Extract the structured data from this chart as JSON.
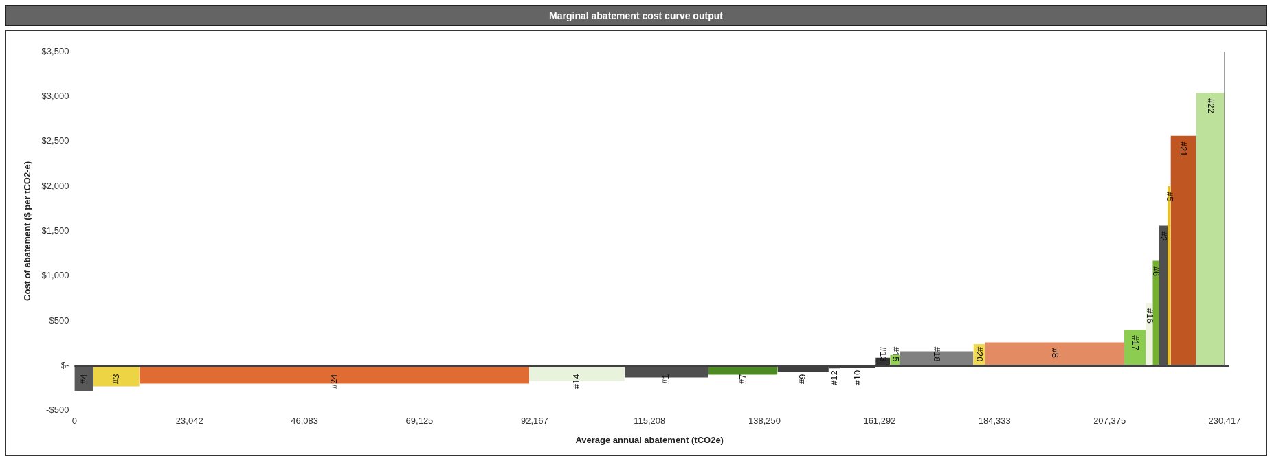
{
  "chart_data": {
    "type": "area",
    "title": "Marginal abatement cost curve output",
    "xlabel": "Average annual abatement (tCO2e)",
    "ylabel": "Cost of abatement ($ per tCO2-e)",
    "xlim": [
      0,
      230417
    ],
    "xticks": [
      {
        "value": 0,
        "label": "0"
      },
      {
        "value": 23042,
        "label": "23,042"
      },
      {
        "value": 46083,
        "label": "46,083"
      },
      {
        "value": 69125,
        "label": "69,125"
      },
      {
        "value": 92167,
        "label": "92,167"
      },
      {
        "value": 115208,
        "label": "115,208"
      },
      {
        "value": 138250,
        "label": "138,250"
      },
      {
        "value": 161292,
        "label": "161,292"
      },
      {
        "value": 184333,
        "label": "184,333"
      },
      {
        "value": 207375,
        "label": "207,375"
      },
      {
        "value": 230417,
        "label": "230,417"
      }
    ],
    "ylim": [
      -500,
      3500
    ],
    "yticks": [
      {
        "value": -500,
        "label": "-$500"
      },
      {
        "value": 0,
        "label": "$-"
      },
      {
        "value": 500,
        "label": "$500"
      },
      {
        "value": 1000,
        "label": "$1,000"
      },
      {
        "value": 1500,
        "label": "$1,500"
      },
      {
        "value": 2000,
        "label": "$2,000"
      },
      {
        "value": 2500,
        "label": "$2,500"
      },
      {
        "value": 3000,
        "label": "$3,000"
      },
      {
        "value": 3500,
        "label": "$3,500"
      }
    ],
    "grid": false,
    "legend": false,
    "ref_lines": [
      {
        "axis": "y",
        "value": 0,
        "color": "#404040"
      },
      {
        "axis": "x",
        "value": 230417,
        "color": "#808080"
      }
    ],
    "series": [
      {
        "name": "#4",
        "color": "#595959",
        "x": [
          0,
          3800
        ],
        "values": [
          -280,
          -280
        ]
      },
      {
        "name": "#3",
        "color": "#ecd445",
        "x": [
          3800,
          13000
        ],
        "values": [
          -230,
          -230
        ]
      },
      {
        "name": "#24",
        "color": "#e06c34",
        "x": [
          13000,
          91100
        ],
        "values": [
          -200,
          -200
        ]
      },
      {
        "name": "#14",
        "color": "#e8f2dc",
        "x": [
          91100,
          110200
        ],
        "values": [
          -170,
          -170
        ]
      },
      {
        "name": "#1",
        "color": "#4f4f4f",
        "x": [
          110200,
          127000
        ],
        "values": [
          -130,
          -130
        ]
      },
      {
        "name": "#7",
        "color": "#4e8a22",
        "x": [
          127000,
          140850
        ],
        "values": [
          -100,
          -100
        ]
      },
      {
        "name": "#9",
        "color": "#3f3f3f",
        "x": [
          140850,
          151100
        ],
        "values": [
          -70,
          -70
        ]
      },
      {
        "name": "#12",
        "color": "#3f3f3f",
        "x": [
          151100,
          153400
        ],
        "values": [
          -30,
          -30
        ]
      },
      {
        "name": "#10",
        "color": "#3f3f3f",
        "x": [
          153400,
          160500
        ],
        "values": [
          -25,
          -25
        ]
      },
      {
        "name": "#13",
        "color": "#333333",
        "x": [
          160500,
          163400
        ],
        "values": [
          90,
          90
        ]
      },
      {
        "name": "#15",
        "color": "#92d050",
        "x": [
          163400,
          165300
        ],
        "values": [
          120,
          120
        ]
      },
      {
        "name": "#18",
        "color": "#808080",
        "x": [
          165300,
          180100
        ],
        "values": [
          160,
          160
        ]
      },
      {
        "name": "#20",
        "color": "#f2d94e",
        "x": [
          180100,
          182400
        ],
        "values": [
          240,
          240
        ]
      },
      {
        "name": "#8",
        "color": "#e38b63",
        "x": [
          182400,
          210300
        ],
        "values": [
          260,
          260
        ]
      },
      {
        "name": "#17",
        "color": "#8ccc50",
        "x": [
          210300,
          214600
        ],
        "values": [
          400,
          400
        ]
      },
      {
        "name": "#16",
        "color": "#eef4e0",
        "x": [
          214600,
          216000
        ],
        "values": [
          700,
          700
        ]
      },
      {
        "name": "#6",
        "color": "#74b030",
        "x": [
          216000,
          217300
        ],
        "values": [
          1170,
          1170
        ]
      },
      {
        "name": "#2",
        "color": "#505050",
        "x": [
          217300,
          219000
        ],
        "values": [
          1560,
          1560
        ]
      },
      {
        "name": "#5",
        "color": "#e8c020",
        "x": [
          219000,
          219600
        ],
        "values": [
          2000,
          2000
        ]
      },
      {
        "name": "#21",
        "color": "#c05621",
        "x": [
          219600,
          224700
        ],
        "values": [
          2560,
          2560
        ]
      },
      {
        "name": "#22",
        "color": "#bde09a",
        "x": [
          224700,
          230417
        ],
        "values": [
          3040,
          3040
        ]
      }
    ]
  }
}
